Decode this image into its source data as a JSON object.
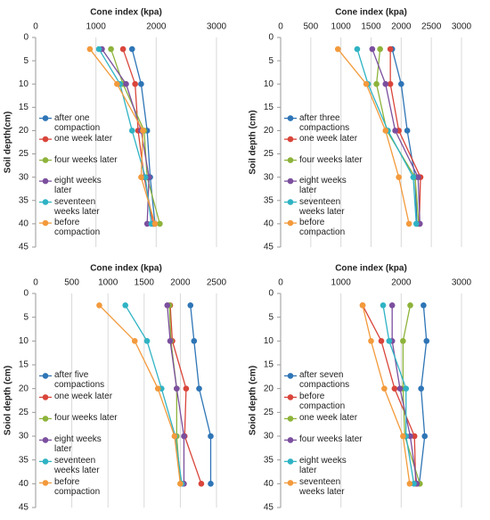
{
  "chart_data": [
    {
      "type": "line",
      "x_label": "Cone index (kpa)",
      "y_label": "Soil depth(cm)",
      "xlim": [
        0,
        3000
      ],
      "xticks": [
        0,
        1000,
        2000,
        3000
      ],
      "ylim": [
        0,
        45
      ],
      "yticks": [
        0,
        5,
        10,
        15,
        20,
        25,
        30,
        35,
        40,
        45
      ],
      "y_reversed": true,
      "x_axis_position": "top",
      "grid": true,
      "legend": "left",
      "y": [
        2.5,
        10,
        20,
        30,
        40
      ],
      "series": [
        {
          "name": "after one compaction",
          "color": "#2e75b6",
          "values": [
            1600,
            1750,
            1850,
            1900,
            1980
          ]
        },
        {
          "name": "one week later",
          "color": "#d9453a",
          "values": [
            1450,
            1650,
            1700,
            1800,
            1950
          ]
        },
        {
          "name": "four weeks later",
          "color": "#8db33a",
          "values": [
            1250,
            1450,
            1800,
            1850,
            2060
          ]
        },
        {
          "name": "eight weeks later",
          "color": "#7b4f9e",
          "values": [
            1100,
            1500,
            1750,
            1880,
            1850
          ]
        },
        {
          "name": "seventeen weeks later",
          "color": "#2fb3c4",
          "values": [
            1050,
            1400,
            1600,
            1820,
            1920
          ]
        },
        {
          "name": "before compaction",
          "color": "#f39a3c",
          "values": [
            900,
            1350,
            1780,
            1750,
            1980
          ]
        }
      ]
    },
    {
      "type": "line",
      "x_label": "Cone index (kpa)",
      "y_label": "Soil depth (cm)",
      "xlim": [
        0,
        3000
      ],
      "xticks": [
        0,
        500,
        1000,
        1500,
        2000,
        2500,
        3000
      ],
      "ylim": [
        0,
        45
      ],
      "yticks": [
        0,
        5,
        10,
        15,
        20,
        25,
        30,
        35,
        40,
        45
      ],
      "y_reversed": true,
      "x_axis_position": "top",
      "grid": true,
      "legend": "left",
      "y": [
        2.5,
        10,
        20,
        30,
        40
      ],
      "series": [
        {
          "name": "after three compactions",
          "color": "#2e75b6",
          "values": [
            1850,
            2000,
            2100,
            2230,
            2260
          ]
        },
        {
          "name": "one week later",
          "color": "#d9453a",
          "values": [
            1820,
            1820,
            1960,
            2320,
            2300
          ]
        },
        {
          "name": "four weeks later",
          "color": "#8db33a",
          "values": [
            1650,
            1590,
            1760,
            2230,
            2290
          ]
        },
        {
          "name": "eight weeks later",
          "color": "#7b4f9e",
          "values": [
            1520,
            1740,
            1900,
            2280,
            2310
          ]
        },
        {
          "name": "seventeen weeks later",
          "color": "#2fb3c4",
          "values": [
            1270,
            1450,
            1780,
            2200,
            2250
          ]
        },
        {
          "name": "before compaction",
          "color": "#f39a3c",
          "values": [
            950,
            1420,
            1740,
            1960,
            2130
          ]
        }
      ]
    },
    {
      "type": "line",
      "x_label": "Cone index (kpa)",
      "y_label": "Soiol depth (cm)",
      "xlim": [
        0,
        2500
      ],
      "xticks": [
        0,
        500,
        1000,
        1500,
        2000,
        2500
      ],
      "ylim": [
        0,
        45
      ],
      "yticks": [
        0,
        5,
        10,
        15,
        20,
        25,
        30,
        35,
        40,
        45
      ],
      "y_reversed": true,
      "x_axis_position": "top",
      "grid": true,
      "legend": "left",
      "y": [
        2.5,
        10,
        20,
        30,
        40
      ],
      "series": [
        {
          "name": "after five compactions",
          "color": "#2e75b6",
          "values": [
            2140,
            2190,
            2260,
            2420,
            2420
          ]
        },
        {
          "name": "one week later",
          "color": "#d9453a",
          "values": [
            1860,
            1890,
            2080,
            2060,
            2290
          ]
        },
        {
          "name": "four weeks later",
          "color": "#8db33a",
          "values": [
            1850,
            1870,
            1950,
            1950,
            2000
          ]
        },
        {
          "name": "eight weeks later",
          "color": "#7b4f9e",
          "values": [
            1820,
            1860,
            1950,
            2050,
            2050
          ]
        },
        {
          "name": "seventeen weeks later",
          "color": "#2fb3c4",
          "values": [
            1240,
            1540,
            1740,
            1930,
            2020
          ]
        },
        {
          "name": "before compaction",
          "color": "#f39a3c",
          "values": [
            880,
            1370,
            1690,
            1920,
            2000
          ]
        }
      ]
    },
    {
      "type": "line",
      "x_label": "Cone index (kpa)",
      "y_label": "Soiol depth (cm)",
      "xlim": [
        0,
        3000
      ],
      "xticks": [
        0,
        1000,
        2000,
        3000
      ],
      "ylim": [
        0,
        45
      ],
      "yticks": [
        0,
        5,
        10,
        15,
        20,
        25,
        30,
        35,
        40,
        45
      ],
      "y_reversed": true,
      "x_axis_position": "top",
      "grid": true,
      "legend": "left",
      "y": [
        2.5,
        10,
        20,
        30,
        40
      ],
      "series": [
        {
          "name": "after seven compactions",
          "color": "#2e75b6",
          "values": [
            2370,
            2420,
            2330,
            2390,
            2300
          ]
        },
        {
          "name": "before compaction",
          "color": "#d9453a",
          "values": [
            1360,
            1670,
            1890,
            2220,
            2240
          ]
        },
        {
          "name": "one week later",
          "color": "#8db33a",
          "values": [
            2150,
            2030,
            2030,
            2060,
            2310
          ]
        },
        {
          "name": "four weeks later",
          "color": "#7b4f9e",
          "values": [
            1850,
            1850,
            1980,
            2150,
            2260
          ]
        },
        {
          "name": "eight weeks later",
          "color": "#2fb3c4",
          "values": [
            1700,
            1800,
            2080,
            2080,
            2210
          ]
        },
        {
          "name": "seventeen weeks later",
          "color": "#f39a3c",
          "values": [
            1360,
            1500,
            1720,
            2030,
            2140
          ]
        }
      ]
    }
  ]
}
